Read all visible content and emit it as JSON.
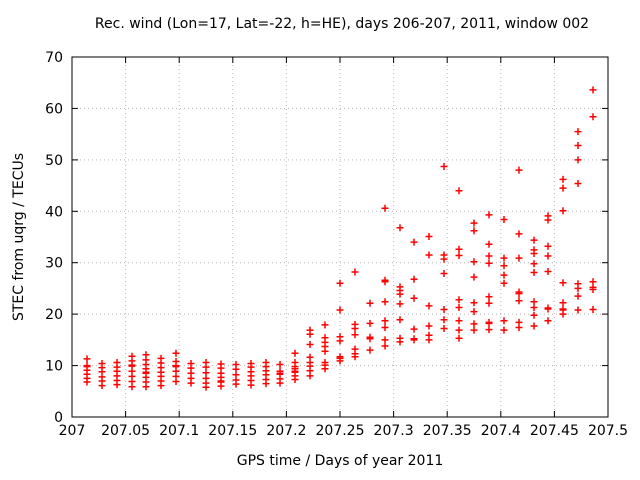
{
  "chart_data": {
    "type": "scatter",
    "title": "Rec. wind (Lon=17, Lat=-22, h=HE), days 206-207, 2011, window 002",
    "xlabel": "GPS time / Days of year 2011",
    "ylabel": "STEC from uqrg / TECUs",
    "xlim": [
      207,
      207.5
    ],
    "ylim": [
      0,
      70
    ],
    "xticks": [
      207,
      207.05,
      207.1,
      207.15,
      207.2,
      207.25,
      207.3,
      207.35,
      207.4,
      207.45,
      207.5
    ],
    "xtick_labels": [
      "207",
      "207.05",
      "207.1",
      "207.15",
      "207.2",
      "207.25",
      "207.3",
      "207.35",
      "207.4",
      "207.45",
      "207.5"
    ],
    "yticks": [
      0,
      10,
      20,
      30,
      40,
      50,
      60,
      70
    ],
    "ytick_labels": [
      "0",
      "10",
      "20",
      "30",
      "40",
      "50",
      "60",
      "70"
    ],
    "grid": true,
    "grid_style": "dotted",
    "grid_color": "#b5b5b5",
    "legend_position": "none",
    "marker": "plus",
    "marker_color": "#ff0000",
    "axis_color": "#000000",
    "series": [
      {
        "name": "STEC from uqrg",
        "clusters": [
          {
            "t": 207.014,
            "values": [
              11.3,
              10.0,
              9.8,
              9.1,
              8.3,
              7.5,
              6.8
            ]
          },
          {
            "t": 207.028,
            "values": [
              10.4,
              9.6,
              8.8,
              7.8,
              7.0,
              6.1
            ]
          },
          {
            "t": 207.042,
            "values": [
              10.6,
              9.7,
              8.9,
              8.0,
              7.1,
              6.3
            ]
          },
          {
            "t": 207.056,
            "values": [
              11.8,
              10.9,
              10.1,
              9.9,
              8.9,
              7.9,
              6.9,
              5.9
            ]
          },
          {
            "t": 207.069,
            "values": [
              12.1,
              11.1,
              10.2,
              9.4,
              8.7,
              8.5,
              7.7,
              6.8,
              5.9
            ]
          },
          {
            "t": 207.083,
            "values": [
              11.4,
              10.5,
              9.6,
              8.7,
              7.9,
              7.0,
              6.1
            ]
          },
          {
            "t": 207.097,
            "values": [
              12.4,
              10.8,
              10.0,
              9.8,
              8.9,
              7.9,
              6.9
            ]
          },
          {
            "t": 207.111,
            "values": [
              10.4,
              9.5,
              8.5,
              7.5,
              6.6
            ]
          },
          {
            "t": 207.125,
            "values": [
              10.6,
              9.7,
              8.6,
              7.5,
              6.6,
              5.8
            ]
          },
          {
            "t": 207.139,
            "values": [
              10.3,
              9.5,
              8.5,
              7.7,
              7.0,
              6.8,
              6.0
            ]
          },
          {
            "t": 207.153,
            "values": [
              10.2,
              9.3,
              8.2,
              7.2,
              6.4
            ]
          },
          {
            "t": 207.167,
            "values": [
              10.4,
              9.7,
              8.8,
              8.0,
              7.1,
              6.2
            ]
          },
          {
            "t": 207.181,
            "values": [
              10.6,
              9.8,
              9.0,
              8.2,
              7.3,
              6.5
            ]
          },
          {
            "t": 207.194,
            "values": [
              10.2,
              8.9,
              8.5,
              8.3,
              7.4,
              6.6
            ]
          },
          {
            "t": 207.208,
            "values": [
              12.4,
              10.6,
              9.8,
              9.4,
              8.9,
              8.7,
              8.0,
              7.3
            ]
          },
          {
            "t": 207.222,
            "values": [
              16.9,
              16.1,
              14.1,
              11.6,
              10.6,
              9.9,
              9.0,
              8.0
            ]
          },
          {
            "t": 207.236,
            "values": [
              17.9,
              15.4,
              14.5,
              13.7,
              12.8,
              10.6,
              10.1,
              9.4
            ]
          },
          {
            "t": 207.25,
            "values": [
              26.0,
              20.8,
              15.6,
              14.8,
              11.7,
              11.4,
              10.9
            ]
          },
          {
            "t": 207.264,
            "values": [
              28.2,
              18.0,
              17.2,
              16.0,
              13.2,
              12.3,
              11.7
            ]
          },
          {
            "t": 207.278,
            "values": [
              22.1,
              18.2,
              15.5,
              15.2,
              13.0
            ]
          },
          {
            "t": 207.292,
            "values": [
              40.6,
              26.6,
              26.3,
              22.4,
              18.7,
              17.4,
              15.0,
              13.8
            ]
          },
          {
            "t": 207.306,
            "values": [
              36.8,
              25.3,
              24.6,
              23.9,
              22.0,
              18.9,
              15.3,
              14.6
            ]
          },
          {
            "t": 207.319,
            "values": [
              34.0,
              26.8,
              23.1,
              17.1,
              15.2,
              15.0
            ]
          },
          {
            "t": 207.333,
            "values": [
              35.1,
              31.5,
              21.6,
              17.7,
              15.9,
              15.0
            ]
          },
          {
            "t": 207.347,
            "values": [
              48.7,
              31.5,
              30.7,
              27.9,
              20.9,
              18.9,
              17.2
            ]
          },
          {
            "t": 207.361,
            "values": [
              44.0,
              32.6,
              31.4,
              22.8,
              21.3,
              18.7,
              16.9,
              15.3
            ]
          },
          {
            "t": 207.375,
            "values": [
              37.7,
              36.2,
              30.2,
              27.2,
              22.2,
              20.5,
              18.1,
              16.9
            ]
          },
          {
            "t": 207.389,
            "values": [
              39.3,
              33.6,
              31.3,
              29.9,
              23.4,
              22.1,
              18.4,
              18.2,
              17.0
            ]
          },
          {
            "t": 207.403,
            "values": [
              38.4,
              30.9,
              29.4,
              27.6,
              26.0,
              18.7,
              16.9
            ]
          },
          {
            "t": 207.417,
            "values": [
              48.0,
              35.6,
              30.9,
              24.3,
              24.0,
              22.6,
              18.4,
              17.4
            ]
          },
          {
            "t": 207.431,
            "values": [
              34.4,
              32.5,
              31.8,
              29.8,
              28.1,
              22.4,
              21.3,
              19.8,
              17.7
            ]
          },
          {
            "t": 207.444,
            "values": [
              39.1,
              38.3,
              33.2,
              31.3,
              28.3,
              21.2,
              21.0,
              18.7
            ]
          },
          {
            "t": 207.458,
            "values": [
              46.2,
              44.5,
              40.1,
              26.1,
              22.2,
              21.0,
              20.8,
              20.0
            ]
          },
          {
            "t": 207.472,
            "values": [
              55.5,
              52.8,
              50.0,
              45.4,
              25.9,
              25.0,
              23.5,
              20.8
            ]
          },
          {
            "t": 207.486,
            "values": [
              63.6,
              58.4,
              26.3,
              25.2,
              24.8,
              20.9
            ]
          }
        ]
      }
    ]
  }
}
